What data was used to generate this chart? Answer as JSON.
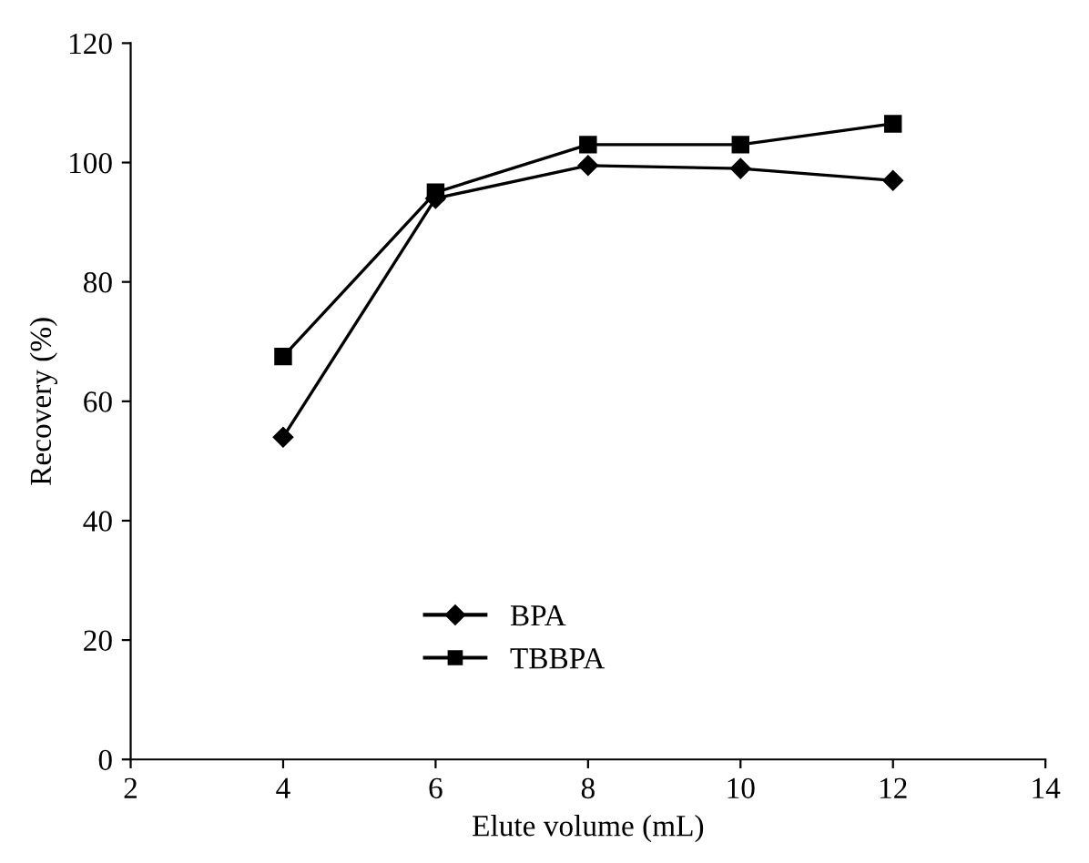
{
  "chart_data": {
    "type": "line",
    "xlabel": "Elute volume (mL)",
    "ylabel": "Recovery (%)",
    "x": [
      4,
      6,
      8,
      10,
      12
    ],
    "series": [
      {
        "name": "BPA",
        "color": "#000000",
        "marker": "diamond",
        "values": [
          54,
          94,
          99.5,
          99,
          97
        ]
      },
      {
        "name": "TBBPA",
        "color": "#000000",
        "marker": "square",
        "values": [
          67.5,
          95,
          103,
          103,
          106.5
        ]
      }
    ],
    "xlim": [
      2,
      14
    ],
    "xticks": [
      2,
      4,
      6,
      8,
      10,
      12,
      14
    ],
    "ylim": [
      0,
      120
    ],
    "yticks": [
      0,
      20,
      40,
      60,
      80,
      100,
      120
    ],
    "grid": false,
    "legend": "bottom",
    "line_style": "solid"
  }
}
